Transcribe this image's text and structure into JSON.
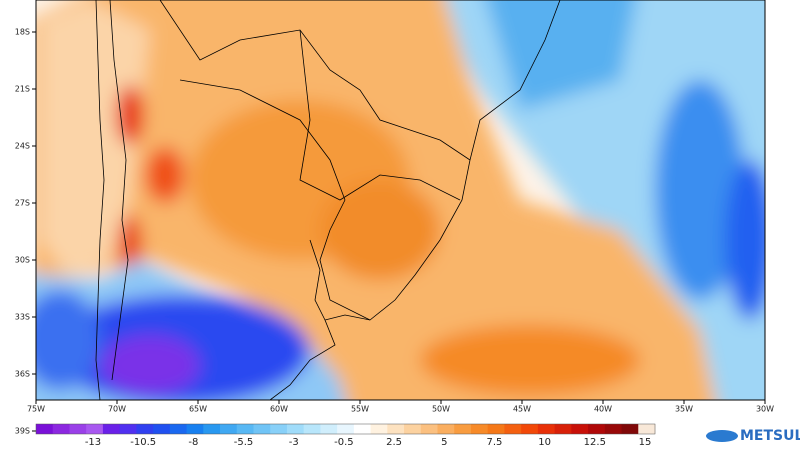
{
  "map": {
    "lat_labels": [
      "18S",
      "21S",
      "24S",
      "27S",
      "30S",
      "33S",
      "36S",
      "39S"
    ],
    "lon_labels": [
      "75W",
      "70W",
      "65W",
      "60W",
      "55W",
      "50W",
      "45W",
      "40W",
      "35W",
      "30W"
    ]
  },
  "colorbar": {
    "labels": [
      "-13",
      "-10.5",
      "-8",
      "-5.5",
      "-3",
      "-0.5",
      "2.5",
      "5",
      "7.5",
      "10",
      "12.5",
      "15"
    ],
    "colors": [
      "#7a10d8",
      "#8c28e0",
      "#9a40e8",
      "#a858f0",
      "#6a20e8",
      "#5030f0",
      "#3040f0",
      "#2050f0",
      "#1a68f0",
      "#1880f0",
      "#2898f0",
      "#40a8f2",
      "#58b8f4",
      "#70c4f6",
      "#88d0f8",
      "#a0dcfa",
      "#b8e6fb",
      "#d0eefc",
      "#e8f6fe",
      "#ffffff",
      "#fff2e0",
      "#fde2c0",
      "#fcd2a0",
      "#fbc080",
      "#faae60",
      "#f89c40",
      "#f78a28",
      "#f57818",
      "#f46010",
      "#f24808",
      "#e83008",
      "#d82008",
      "#c81008",
      "#b00808",
      "#980808",
      "#800808",
      "#f8e8d8"
    ]
  },
  "logo": {
    "text": "METSUL"
  }
}
